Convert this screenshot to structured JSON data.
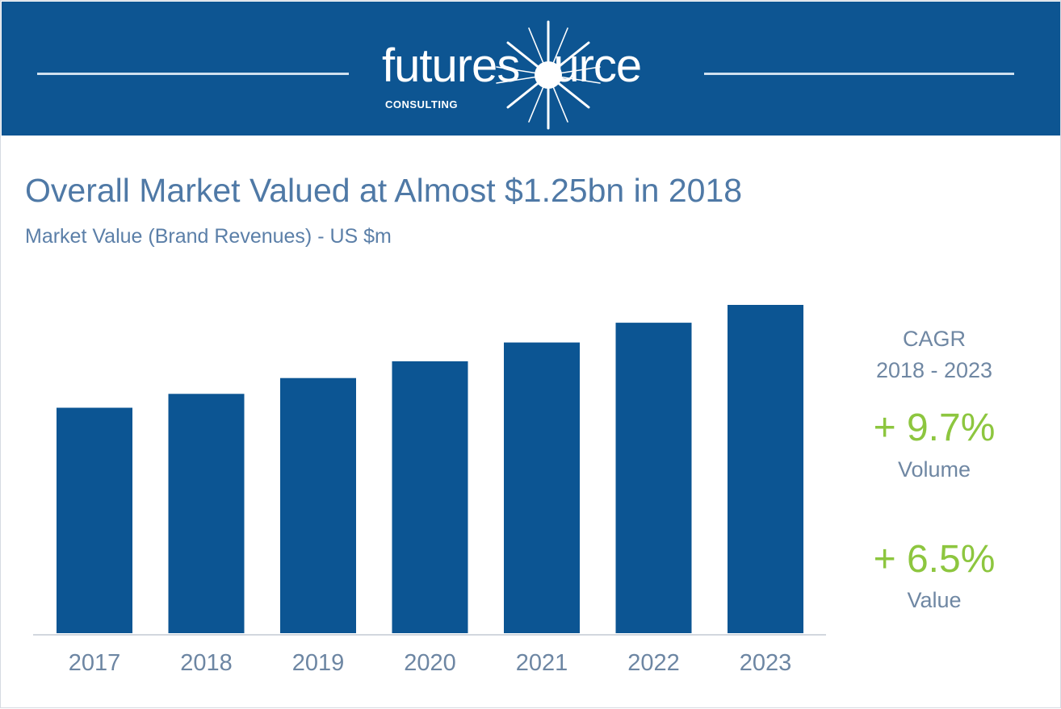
{
  "brand": {
    "word_left": "futures",
    "word_right": "urce",
    "tagline": "CONSULTING",
    "logo_icon": "starburst-o-icon",
    "colors": {
      "banner": "#0d5592",
      "accent_green": "#8dc63f",
      "bar": "#0c5593",
      "title": "#4f79a6"
    }
  },
  "header": {
    "title": "Overall Market Valued at Almost $1.25bn in 2018",
    "subtitle": "Market Value (Brand Revenues) - US $m"
  },
  "cagr": {
    "heading_line1": "CAGR",
    "heading_line2": "2018 - 2023",
    "volume_value": "+ 9.7%",
    "volume_label": "Volume",
    "value_value": "+ 6.5%",
    "value_label": "Value"
  },
  "chart_data": {
    "type": "bar",
    "title": "Overall Market Valued at Almost $1.25bn in 2018",
    "subtitle": "Market Value (Brand Revenues) - US $m",
    "categories": [
      "2017",
      "2018",
      "2019",
      "2020",
      "2021",
      "2022",
      "2023"
    ],
    "values": [
      1140,
      1210,
      1290,
      1375,
      1470,
      1570,
      1660
    ],
    "ylim": [
      0,
      1660
    ],
    "xlabel": "",
    "ylabel": "",
    "grid": false,
    "legend": "none"
  }
}
